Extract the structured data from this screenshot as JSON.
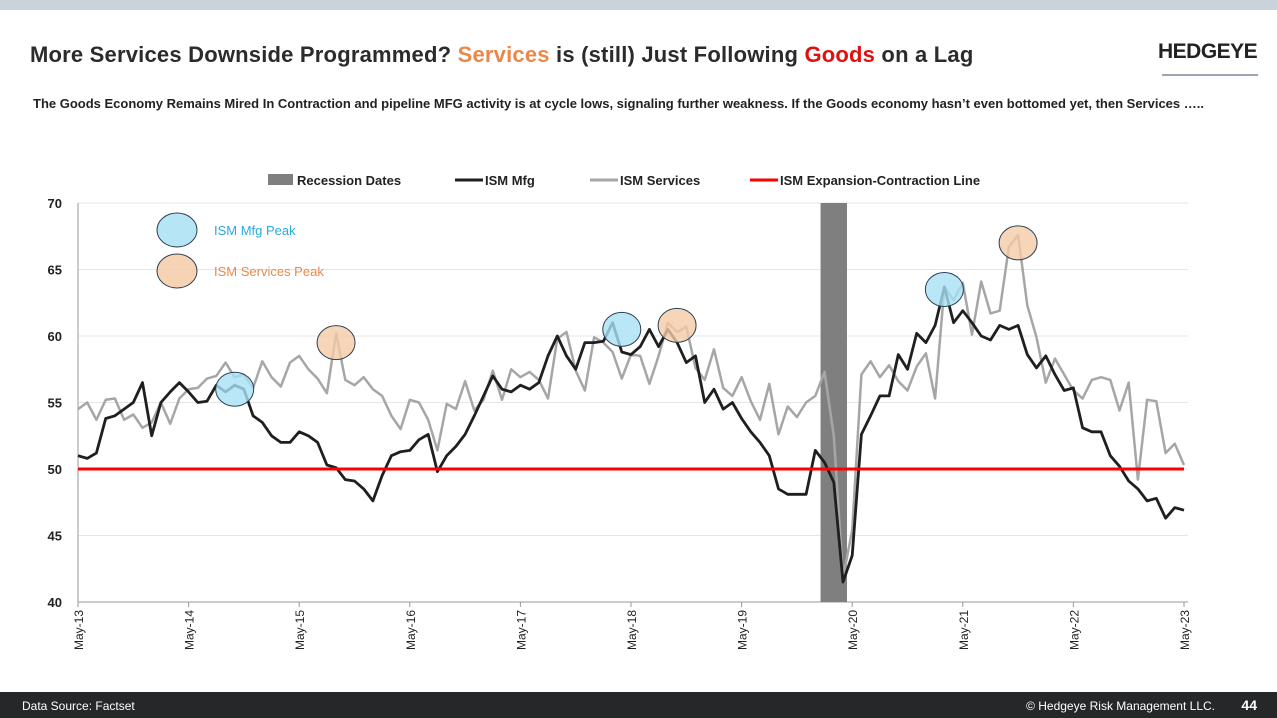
{
  "header": {
    "title_part1": "More Services Downside Programmed?  ",
    "title_services": "Services",
    "title_part2": " is (still) Just Following ",
    "title_goods": "Goods",
    "title_part3": " on a Lag",
    "logo": "HEDGEYE",
    "subtitle": "The Goods Economy Remains Mired In Contraction and pipeline MFG activity is at cycle lows, signaling further weakness. If the Goods economy hasn’t even bottomed yet, then Services ….."
  },
  "footer": {
    "source": "Data Source: Factset",
    "copyright": "© Hedgeye Risk Management LLC.",
    "page": "44"
  },
  "chart_data": {
    "type": "line",
    "x_start": "May-13",
    "x_end": "May-23",
    "frequency": "monthly",
    "x_tick_labels": [
      "May-13",
      "May-14",
      "May-15",
      "May-16",
      "May-17",
      "May-18",
      "May-19",
      "May-20",
      "May-21",
      "May-22",
      "May-23"
    ],
    "ylim": [
      40,
      70
    ],
    "y_ticks": [
      40,
      45,
      50,
      55,
      60,
      65,
      70
    ],
    "grid": true,
    "legend_position": "top",
    "legend": [
      "Recession Dates",
      "ISM Mfg",
      "ISM Services",
      "ISM Expansion-Contraction Line"
    ],
    "colors": {
      "recession": "#7f7f7f",
      "mfg": "#1f1f1f",
      "services": "#a6a6a6",
      "line50": "#ff0000",
      "mfg_peak": "#a9e1f5",
      "services_peak": "#f5cba8"
    },
    "recession": {
      "start": "Feb-20",
      "end": "Apr-20"
    },
    "expansion_contraction_line": 50,
    "series": [
      {
        "name": "ISM Mfg",
        "values": [
          51,
          50.8,
          51.2,
          53.8,
          54,
          54.5,
          55,
          56.5,
          52.5,
          55,
          55.8,
          56.5,
          55.8,
          55,
          55.1,
          56.3,
          55.8,
          56.3,
          56,
          54,
          53.5,
          52.5,
          52,
          52,
          52.8,
          52.5,
          52,
          50.3,
          50.1,
          49.2,
          49.1,
          48.5,
          47.6,
          49.5,
          51,
          51.3,
          51.4,
          52.2,
          52.6,
          49.8,
          51,
          51.7,
          52.6,
          54,
          55.5,
          57,
          56,
          55.8,
          56.3,
          56,
          56.5,
          58.5,
          60,
          58.5,
          57.5,
          59.5,
          59.5,
          59.6,
          61,
          58.8,
          58.6,
          59.2,
          60.5,
          59.2,
          60.5,
          59.5,
          58,
          58.5,
          55,
          56,
          54.5,
          55,
          53.8,
          52.8,
          52,
          51,
          48.5,
          48.1,
          48.1,
          48.1,
          51.4,
          50.5,
          49,
          41.5,
          43.5,
          52.6,
          54,
          55.5,
          55.5,
          58.6,
          57.5,
          60.2,
          59.5,
          60.8,
          63.7,
          61,
          61.9,
          61,
          60,
          59.7,
          60.8,
          60.5,
          60.8,
          58.6,
          57.6,
          58.5,
          57.1,
          55.9,
          56.1,
          53.1,
          52.8,
          52.8,
          51,
          50.2,
          49.1,
          48.5,
          47.6,
          47.8,
          46.3,
          47.1,
          46.9
        ]
      },
      {
        "name": "ISM Services",
        "values": [
          54.5,
          55,
          53.7,
          55.2,
          55.3,
          53.7,
          54.1,
          53.1,
          53.5,
          55,
          53.4,
          55.3,
          56,
          56.1,
          56.8,
          57,
          58,
          56.9,
          57.1,
          56.1,
          58.1,
          56.9,
          56.2,
          58,
          58.5,
          57.5,
          56.8,
          55.7,
          60.2,
          56.7,
          56.3,
          56.9,
          56,
          55.5,
          54,
          53,
          55.2,
          55,
          53.7,
          51.4,
          54.9,
          54.5,
          56.6,
          54.4,
          55.2,
          57.4,
          55.2,
          57.5,
          56.9,
          57.3,
          56.7,
          55.3,
          59.8,
          60.3,
          57.4,
          55.9,
          59.9,
          59.5,
          58.8,
          56.8,
          58.6,
          58.5,
          56.4,
          58.5,
          61,
          60.3,
          60.7,
          57.6,
          56.7,
          59,
          56.1,
          55.5,
          56.9,
          55.1,
          53.7,
          56.4,
          52.6,
          54.7,
          53.9,
          55,
          55.5,
          57.3,
          52.5,
          41.8,
          45.4,
          57.1,
          58.1,
          56.9,
          57.8,
          56.6,
          55.9,
          57.7,
          58.7,
          55.3,
          63.7,
          62.7,
          64,
          60.1,
          64.1,
          61.7,
          61.9,
          66.7,
          67.6,
          62.3,
          59.9,
          56.5,
          58.3,
          57.1,
          55.9,
          55.3,
          56.7,
          56.9,
          56.7,
          54.4,
          56.5,
          49.2,
          55.2,
          55.1,
          51.2,
          51.9,
          50.3
        ]
      }
    ],
    "annotations": [
      {
        "label": "ISM Mfg Peak",
        "type": "mfg_peak",
        "points": [
          {
            "date": "Oct-14",
            "value": 56
          },
          {
            "date": "Apr-18",
            "value": 60.5
          },
          {
            "date": "Mar-21",
            "value": 63.5
          }
        ]
      },
      {
        "label": "ISM Services Peak",
        "type": "services_peak",
        "points": [
          {
            "date": "Sep-15",
            "value": 59.5
          },
          {
            "date": "Oct-18",
            "value": 60.8
          },
          {
            "date": "Nov-21",
            "value": 67
          }
        ]
      }
    ]
  }
}
